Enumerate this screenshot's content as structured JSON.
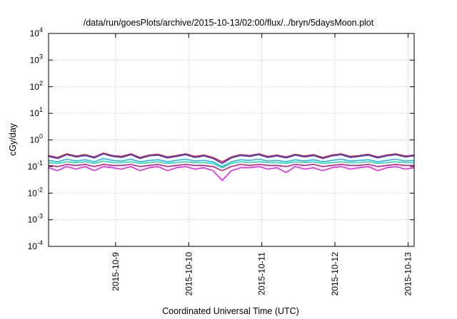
{
  "chart_data": {
    "type": "line",
    "title": "/data/run/goesPlots/archive/2015-10-13/02:00/flux/../bryn/5daysMoon.plot",
    "xlabel": "Coordinated Universal Time (UTC)",
    "ylabel": "cGy/day",
    "yscale": "log",
    "ylim": [
      0.0001,
      10000
    ],
    "xlim": [
      "2015-10-08T02:00",
      "2015-10-13T02:00"
    ],
    "grid": true,
    "legend": "none",
    "y_ticks": [
      {
        "base": "10",
        "exp": "-4",
        "value": 0.0001
      },
      {
        "base": "10",
        "exp": "-3",
        "value": 0.001
      },
      {
        "base": "10",
        "exp": "-2",
        "value": 0.01
      },
      {
        "base": "10",
        "exp": "-1",
        "value": 0.1
      },
      {
        "base": "10",
        "exp": "0",
        "value": 1
      },
      {
        "base": "10",
        "exp": "1",
        "value": 10
      },
      {
        "base": "10",
        "exp": "2",
        "value": 100
      },
      {
        "base": "10",
        "exp": "3",
        "value": 1000
      },
      {
        "base": "10",
        "exp": "4",
        "value": 10000
      }
    ],
    "x_ticks": [
      {
        "label": "2015-10-9",
        "value": "2015-10-09T00:00"
      },
      {
        "label": "2015-10-10",
        "value": "2015-10-10T00:00"
      },
      {
        "label": "2015-10-11",
        "value": "2015-10-11T00:00"
      },
      {
        "label": "2015-10-12",
        "value": "2015-10-12T00:00"
      },
      {
        "label": "2015-10-13",
        "value": "2015-10-13T00:00"
      }
    ],
    "x": [
      "2015-10-08T02:00",
      "2015-10-08T05:00",
      "2015-10-08T08:00",
      "2015-10-08T11:00",
      "2015-10-08T14:00",
      "2015-10-08T17:00",
      "2015-10-08T20:00",
      "2015-10-08T23:00",
      "2015-10-09T02:00",
      "2015-10-09T05:00",
      "2015-10-09T08:00",
      "2015-10-09T11:00",
      "2015-10-09T14:00",
      "2015-10-09T17:00",
      "2015-10-09T20:00",
      "2015-10-09T23:00",
      "2015-10-10T02:00",
      "2015-10-10T05:00",
      "2015-10-10T08:00",
      "2015-10-10T11:00",
      "2015-10-10T14:00",
      "2015-10-10T17:00",
      "2015-10-10T20:00",
      "2015-10-10T23:00",
      "2015-10-11T02:00",
      "2015-10-11T05:00",
      "2015-10-11T08:00",
      "2015-10-11T11:00",
      "2015-10-11T14:00",
      "2015-10-11T17:00",
      "2015-10-11T20:00",
      "2015-10-11T23:00",
      "2015-10-12T02:00",
      "2015-10-12T05:00",
      "2015-10-12T08:00",
      "2015-10-12T11:00",
      "2015-10-12T14:00",
      "2015-10-12T17:00",
      "2015-10-12T20:00",
      "2015-10-12T23:00",
      "2015-10-13T02:00"
    ],
    "series": [
      {
        "color": "#e8202a",
        "values": [
          0.26,
          0.22,
          0.3,
          0.25,
          0.28,
          0.23,
          0.32,
          0.26,
          0.24,
          0.3,
          0.22,
          0.27,
          0.29,
          0.23,
          0.26,
          0.3,
          0.24,
          0.27,
          0.22,
          0.15,
          0.23,
          0.28,
          0.26,
          0.3,
          0.24,
          0.27,
          0.23,
          0.29,
          0.25,
          0.28,
          0.22,
          0.27,
          0.3,
          0.24,
          0.26,
          0.29,
          0.23,
          0.27,
          0.3,
          0.25,
          0.27
        ]
      },
      {
        "color": "#3040d8",
        "values": [
          0.24,
          0.2,
          0.28,
          0.23,
          0.26,
          0.21,
          0.3,
          0.24,
          0.22,
          0.28,
          0.2,
          0.25,
          0.27,
          0.21,
          0.24,
          0.28,
          0.22,
          0.25,
          0.2,
          0.13,
          0.21,
          0.26,
          0.24,
          0.28,
          0.22,
          0.25,
          0.21,
          0.27,
          0.23,
          0.26,
          0.2,
          0.25,
          0.28,
          0.22,
          0.24,
          0.27,
          0.21,
          0.25,
          0.28,
          0.23,
          0.25
        ]
      },
      {
        "color": "#18b8f0",
        "values": [
          0.17,
          0.15,
          0.19,
          0.16,
          0.18,
          0.15,
          0.2,
          0.17,
          0.16,
          0.19,
          0.15,
          0.17,
          0.18,
          0.15,
          0.17,
          0.19,
          0.16,
          0.17,
          0.15,
          0.1,
          0.15,
          0.18,
          0.17,
          0.19,
          0.16,
          0.17,
          0.15,
          0.18,
          0.16,
          0.18,
          0.15,
          0.17,
          0.19,
          0.16,
          0.17,
          0.18,
          0.15,
          0.17,
          0.19,
          0.16,
          0.17
        ]
      },
      {
        "color": "#30d8a0",
        "values": [
          0.14,
          0.13,
          0.15,
          0.14,
          0.15,
          0.13,
          0.16,
          0.14,
          0.14,
          0.15,
          0.13,
          0.14,
          0.15,
          0.13,
          0.14,
          0.15,
          0.14,
          0.14,
          0.13,
          0.09,
          0.13,
          0.15,
          0.14,
          0.15,
          0.14,
          0.14,
          0.13,
          0.15,
          0.14,
          0.15,
          0.13,
          0.14,
          0.15,
          0.14,
          0.14,
          0.15,
          0.13,
          0.14,
          0.15,
          0.14,
          0.14
        ]
      },
      {
        "color": "#c81890",
        "values": [
          0.11,
          0.1,
          0.12,
          0.11,
          0.12,
          0.1,
          0.12,
          0.11,
          0.11,
          0.12,
          0.1,
          0.11,
          0.12,
          0.1,
          0.11,
          0.12,
          0.11,
          0.11,
          0.1,
          0.07,
          0.1,
          0.12,
          0.11,
          0.12,
          0.11,
          0.11,
          0.1,
          0.12,
          0.11,
          0.12,
          0.1,
          0.11,
          0.12,
          0.11,
          0.11,
          0.12,
          0.1,
          0.11,
          0.12,
          0.11,
          0.11
        ]
      },
      {
        "color": "#f020f0",
        "values": [
          0.09,
          0.07,
          0.1,
          0.08,
          0.1,
          0.07,
          0.1,
          0.09,
          0.08,
          0.1,
          0.07,
          0.09,
          0.1,
          0.07,
          0.09,
          0.1,
          0.08,
          0.09,
          0.07,
          0.03,
          0.07,
          0.09,
          0.09,
          0.1,
          0.08,
          0.09,
          0.06,
          0.1,
          0.08,
          0.09,
          0.07,
          0.09,
          0.1,
          0.08,
          0.09,
          0.1,
          0.07,
          0.09,
          0.1,
          0.08,
          0.09
        ]
      }
    ]
  }
}
